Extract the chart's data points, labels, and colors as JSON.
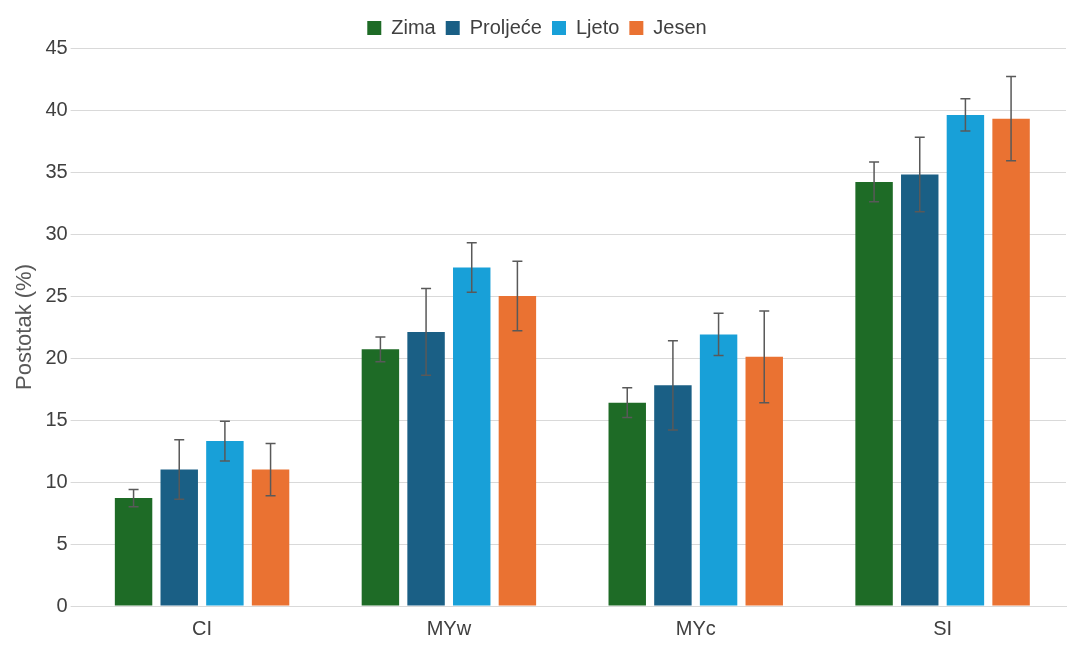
{
  "chart_data": {
    "type": "bar",
    "ylabel": "Postotak (%)",
    "categories": [
      "CI",
      "MYw",
      "MYc",
      "SI"
    ],
    "series": [
      {
        "name": "Zima",
        "color": "#1e6b26",
        "values": [
          8.7,
          20.7,
          16.4,
          34.2
        ],
        "errors": [
          0.7,
          1.0,
          1.2,
          1.6
        ]
      },
      {
        "name": "Proljeće",
        "color": "#1a5f85",
        "values": [
          11.0,
          22.1,
          17.8,
          34.8
        ],
        "errors": [
          2.4,
          3.5,
          3.6,
          3.0
        ]
      },
      {
        "name": "Ljeto",
        "color": "#18a0d8",
        "values": [
          13.3,
          27.3,
          21.9,
          39.6
        ],
        "errors": [
          1.6,
          2.0,
          1.7,
          1.3
        ]
      },
      {
        "name": "Jesen",
        "color": "#ea7232",
        "values": [
          11.0,
          25.0,
          20.1,
          39.3
        ],
        "errors": [
          2.1,
          2.8,
          3.7,
          3.4
        ]
      }
    ],
    "ylim": [
      0,
      45
    ],
    "yticks": [
      0,
      5,
      10,
      15,
      20,
      25,
      30,
      35,
      40,
      45
    ],
    "grid": "y",
    "legend": "top"
  }
}
